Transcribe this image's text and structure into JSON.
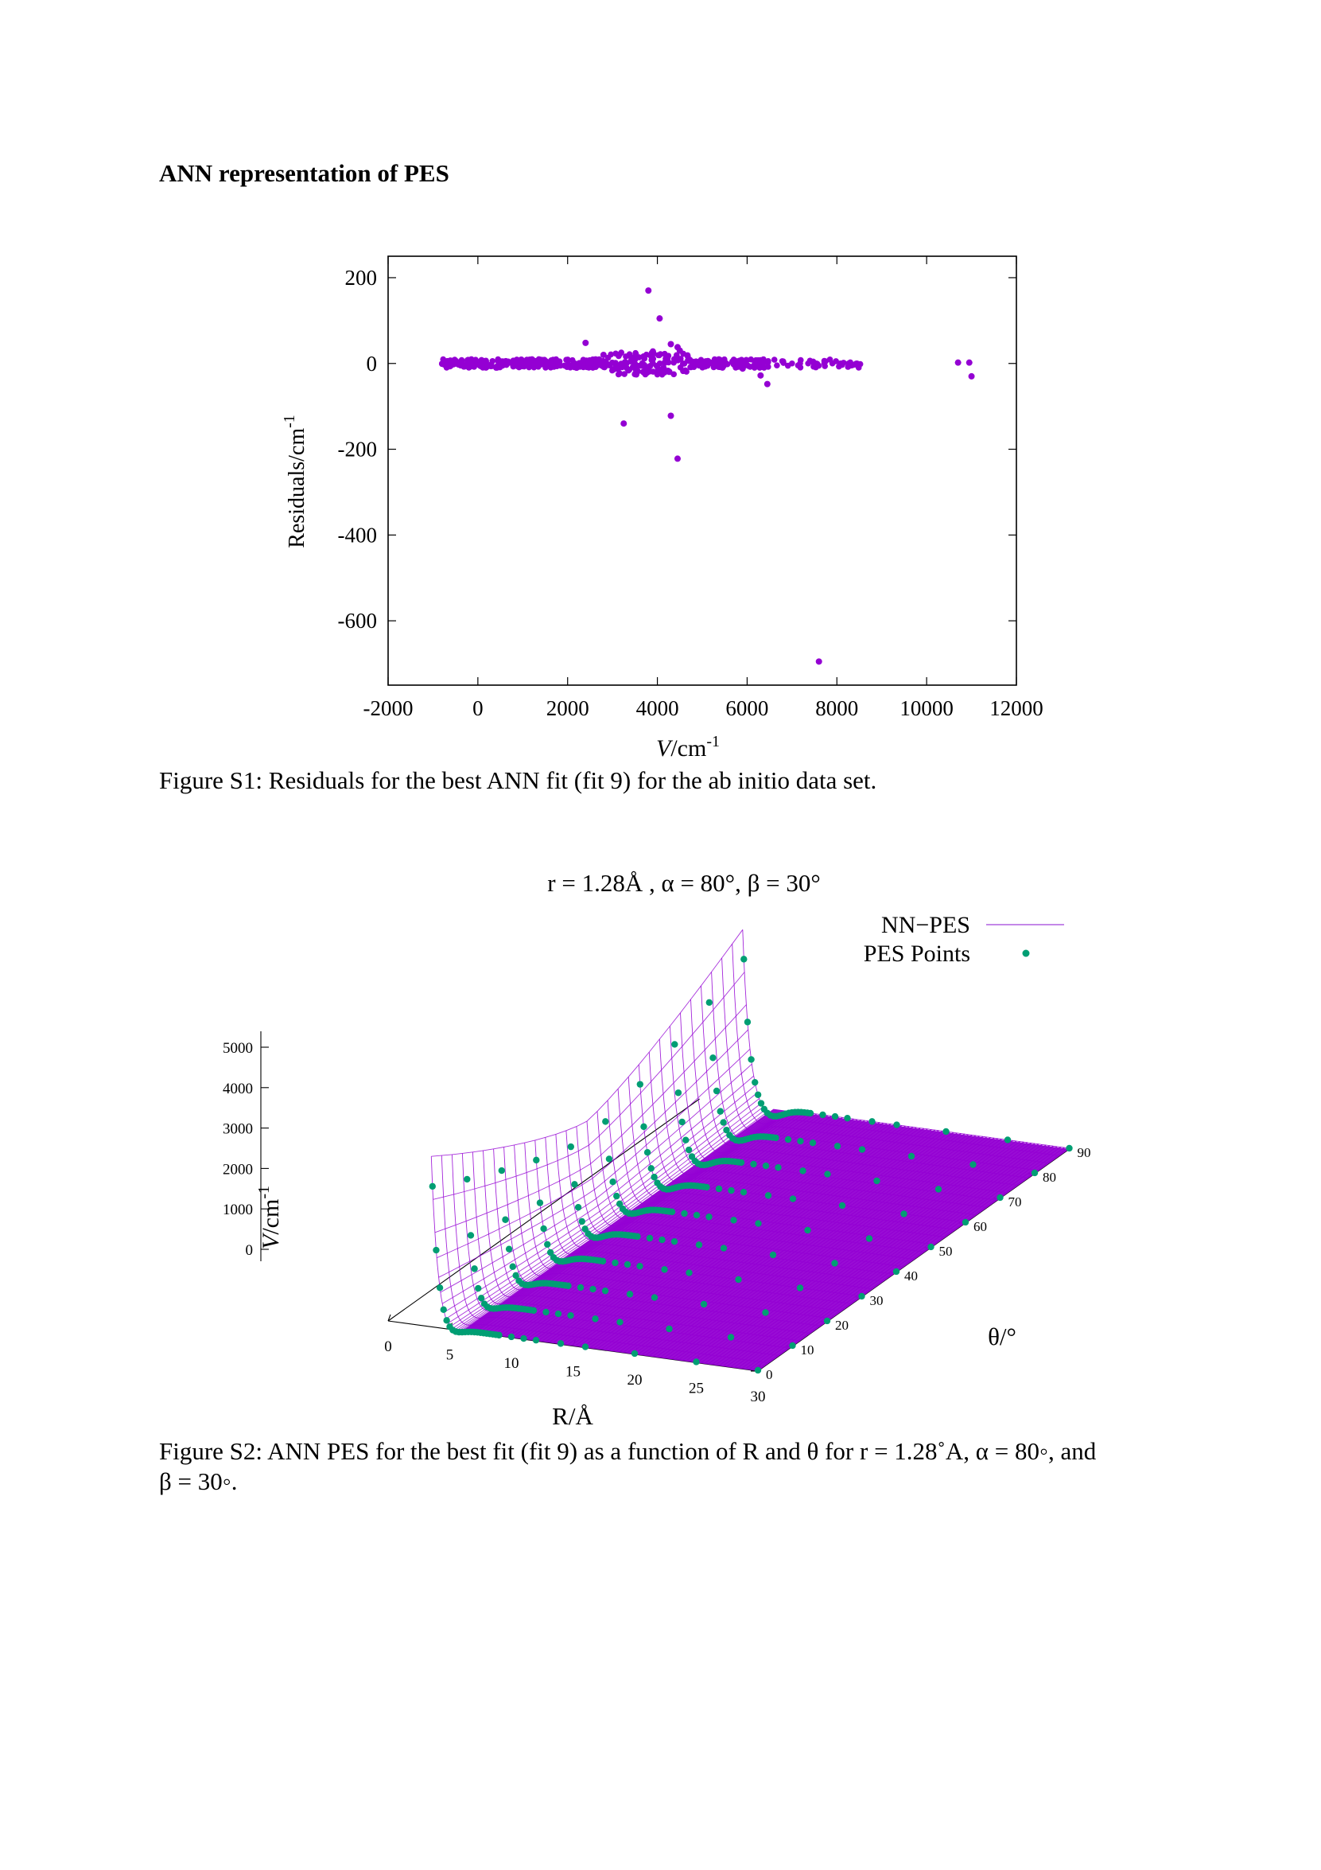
{
  "section_heading": "ANN representation of PES",
  "figure_s1": {
    "caption": "Figure S1: Residuals for the best ANN fit (fit 9) for the ab initio data set.",
    "ylabel_main": "Residuals/cm",
    "ylabel_sup": "-1",
    "xlabel_main": "V/cm",
    "xlabel_sup": "-1"
  },
  "figure_s2": {
    "caption_line1": "Figure S2: ANN PES for the best fit (fit 9) as a function of R and θ for r = 1.28˚A, α = 80◦, and",
    "caption_line2": "β = 30◦.",
    "zlabel_main": "V/cm",
    "zlabel_sup": "-1",
    "xlabel": "R/Å",
    "ylabel": "θ/°"
  },
  "chart_data": [
    {
      "type": "scatter",
      "title": "",
      "xlabel": "V/cm-1",
      "ylabel": "Residuals/cm-1",
      "xlim": [
        -2000,
        12000
      ],
      "ylim": [
        -750,
        250
      ],
      "xticks": [
        "-2000",
        "0",
        "2000",
        "4000",
        "6000",
        "8000",
        "10000",
        "12000"
      ],
      "yticks": [
        "200",
        "0",
        "-200",
        "-400",
        "-600"
      ],
      "color": "#9400d3",
      "outliers": [
        {
          "x": 3800,
          "y": 170
        },
        {
          "x": 4050,
          "y": 105
        },
        {
          "x": 2400,
          "y": 48
        },
        {
          "x": 4300,
          "y": 45
        },
        {
          "x": 4450,
          "y": 38
        },
        {
          "x": 4500,
          "y": 30
        },
        {
          "x": 6300,
          "y": -28
        },
        {
          "x": 6450,
          "y": -48
        },
        {
          "x": 3250,
          "y": -140
        },
        {
          "x": 4300,
          "y": -122
        },
        {
          "x": 4450,
          "y": -222
        },
        {
          "x": 7600,
          "y": -695
        },
        {
          "x": 10700,
          "y": 2
        },
        {
          "x": 10950,
          "y": 2
        },
        {
          "x": 11000,
          "y": -30
        },
        {
          "x": 2800,
          "y": 20
        },
        {
          "x": 3500,
          "y": -25
        },
        {
          "x": 3900,
          "y": 28
        },
        {
          "x": 3100,
          "y": -12
        },
        {
          "x": 4100,
          "y": -20
        },
        {
          "x": 3700,
          "y": 15
        },
        {
          "x": 2200,
          "y": -10
        },
        {
          "x": 5400,
          "y": 8
        },
        {
          "x": 5900,
          "y": -12
        }
      ],
      "band": {
        "x_from": -800,
        "x_to": 8600,
        "y_spread": 10
      }
    },
    {
      "type": "surface3d",
      "title": "r = 1.28Å , α = 80°, β = 30°",
      "xlabel": "R/Å",
      "ylabel": "θ/°",
      "zlabel": "V/cm-1",
      "xticks": [
        "0",
        "5",
        "10",
        "15",
        "20",
        "25",
        "30"
      ],
      "yticks": [
        "0",
        "10",
        "20",
        "30",
        "40",
        "50",
        "60",
        "70",
        "80",
        "90"
      ],
      "zticks": [
        "5000",
        "4000",
        "3000",
        "2000",
        "1000",
        "0"
      ],
      "legend": [
        {
          "label": "NN−PES",
          "color": "#b060e0",
          "kind": "line"
        },
        {
          "label": "PES Points",
          "color": "#009e73",
          "kind": "point"
        }
      ],
      "legend_position": "top-right",
      "surface_color": "#9400d3",
      "points_color": "#009e73"
    }
  ]
}
